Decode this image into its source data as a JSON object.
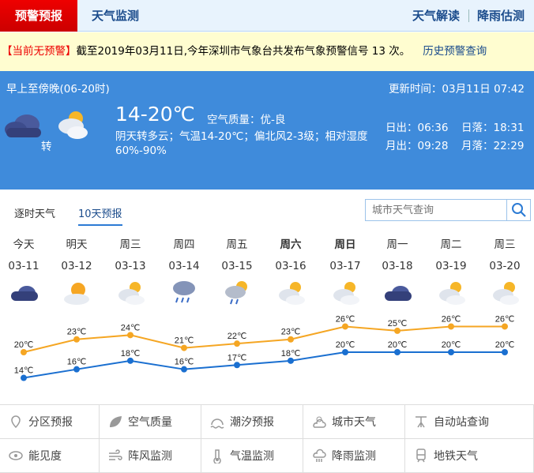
{
  "nav": {
    "active": "预警预报",
    "monitor": "天气监测",
    "interpret": "天气解读",
    "rain": "降雨估测"
  },
  "warning": {
    "status": "【当前无预警】",
    "text": "截至2019年03月11日,今年深圳市气象台共发布气象预警信号 13 次。",
    "history_link": "历史预警查询"
  },
  "today": {
    "period": "早上至傍晚(06-20时)",
    "update": "更新时间：03月11日 07:42",
    "turn": "转",
    "temp": "14-20℃",
    "aqi": "空气质量：优-良",
    "desc": "阴天转多云；气温14-20℃；偏北风2-3级；相对湿度60%-90%",
    "sunrise": "日出：06:36",
    "sunset": "日落：18:31",
    "moonrise": "月出：09:28",
    "moonset": "月落：22:29",
    "icons": [
      "cloudy-icon",
      "partly-cloudy-icon"
    ]
  },
  "tabs": [
    "逐时天气",
    "10天预报"
  ],
  "search": {
    "placeholder": "城市天气查询"
  },
  "days": [
    {
      "name": "今天",
      "date": "03-11",
      "icon": "cloudy"
    },
    {
      "name": "明天",
      "date": "03-12",
      "icon": "sun-cloud"
    },
    {
      "name": "周三",
      "date": "03-13",
      "icon": "partly-cloudy"
    },
    {
      "name": "周四",
      "date": "03-14",
      "icon": "rain"
    },
    {
      "name": "周五",
      "date": "03-15",
      "icon": "sun-shower"
    },
    {
      "name": "周六",
      "date": "03-16",
      "icon": "partly-cloudy",
      "bold": true
    },
    {
      "name": "周日",
      "date": "03-17",
      "icon": "partly-cloudy",
      "bold": true
    },
    {
      "name": "周一",
      "date": "03-18",
      "icon": "cloudy"
    },
    {
      "name": "周二",
      "date": "03-19",
      "icon": "partly-cloudy"
    },
    {
      "name": "周三",
      "date": "03-20",
      "icon": "partly-cloudy"
    }
  ],
  "chart_data": {
    "type": "line",
    "unit": "℃",
    "categories": [
      "03-11",
      "03-12",
      "03-13",
      "03-14",
      "03-15",
      "03-16",
      "03-17",
      "03-18",
      "03-19",
      "03-20"
    ],
    "series": [
      {
        "key": "high",
        "color": "#f5a623",
        "values": [
          20,
          23,
          24,
          21,
          22,
          23,
          26,
          25,
          26,
          26
        ]
      },
      {
        "key": "low",
        "color": "#1a6fd0",
        "values": [
          14,
          16,
          18,
          16,
          17,
          18,
          20,
          20,
          20,
          20
        ]
      }
    ]
  },
  "links": [
    {
      "label": "分区预报",
      "icon": "map-pin-icon"
    },
    {
      "label": "空气质量",
      "icon": "leaf-icon"
    },
    {
      "label": "潮汐预报",
      "icon": "tide-icon"
    },
    {
      "label": "城市天气",
      "icon": "sun-cloud-icon"
    },
    {
      "label": "自动站查询",
      "icon": "weather-station-icon"
    },
    {
      "label": "能见度",
      "icon": "eye-icon"
    },
    {
      "label": "阵风监测",
      "icon": "wind-icon"
    },
    {
      "label": "气温监测",
      "icon": "thermometer-icon"
    },
    {
      "label": "降雨监测",
      "icon": "rain-cloud-icon"
    },
    {
      "label": "地铁天气",
      "icon": "train-icon"
    }
  ]
}
